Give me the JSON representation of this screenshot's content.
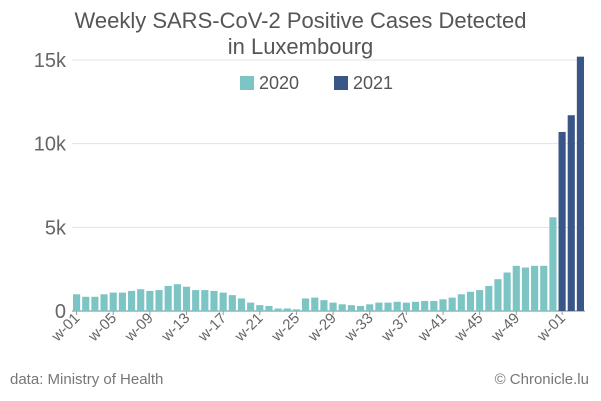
{
  "title_line1": "Weekly SARS-CoV-2 Positive Cases Detected",
  "title_line2": "in Luxembourg",
  "source": "data: Ministry of Health",
  "credit": "© Chronicle.lu",
  "colors": {
    "2020": "#7dc4c4",
    "2021": "#3a5688",
    "grid": "#e3e3e3",
    "axis": "#999999"
  },
  "chart_data": {
    "type": "bar",
    "title": "Weekly SARS-CoV-2 Positive Cases Detected in Luxembourg",
    "xlabel": "",
    "ylabel": "",
    "ylim": [
      0,
      15000
    ],
    "yticks": [
      0,
      5000,
      10000,
      15000
    ],
    "ytick_labels": [
      "0",
      "5k",
      "10k",
      "15k"
    ],
    "legend": {
      "position": "top-center",
      "entries": [
        "2020",
        "2021"
      ]
    },
    "grid": true,
    "categories": [
      "w-01",
      "w-02",
      "w-03",
      "w-04",
      "w-05",
      "w-06",
      "w-07",
      "w-08",
      "w-09",
      "w-10",
      "w-11",
      "w-12",
      "w-13",
      "w-14",
      "w-15",
      "w-16",
      "w-17",
      "w-18",
      "w-19",
      "w-20",
      "w-21",
      "w-22",
      "w-23",
      "w-24",
      "w-25",
      "w-26",
      "w-27",
      "w-28",
      "w-29",
      "w-30",
      "w-31",
      "w-32",
      "w-33",
      "w-34",
      "w-35",
      "w-36",
      "w-37",
      "w-38",
      "w-39",
      "w-40",
      "w-41",
      "w-42",
      "w-43",
      "w-44",
      "w-45",
      "w-46",
      "w-47",
      "w-48",
      "w-49",
      "w-50",
      "w-51",
      "w-52",
      "w-53",
      "w-01",
      "w-02",
      "w-03"
    ],
    "tick_labels": [
      "w-01",
      "w-05",
      "w-09",
      "w-13",
      "w-17",
      "w-21",
      "w-25",
      "w-29",
      "w-33",
      "w-37",
      "w-41",
      "w-45",
      "w-49",
      "w-01"
    ],
    "tick_indices": [
      0,
      4,
      8,
      12,
      16,
      20,
      24,
      28,
      32,
      36,
      40,
      44,
      48,
      53
    ],
    "years": [
      "2020",
      "2020",
      "2020",
      "2020",
      "2020",
      "2020",
      "2020",
      "2020",
      "2020",
      "2020",
      "2020",
      "2020",
      "2020",
      "2020",
      "2020",
      "2020",
      "2020",
      "2020",
      "2020",
      "2020",
      "2020",
      "2020",
      "2020",
      "2020",
      "2020",
      "2020",
      "2020",
      "2020",
      "2020",
      "2020",
      "2020",
      "2020",
      "2020",
      "2020",
      "2020",
      "2020",
      "2020",
      "2020",
      "2020",
      "2020",
      "2020",
      "2020",
      "2020",
      "2020",
      "2020",
      "2020",
      "2020",
      "2020",
      "2020",
      "2020",
      "2020",
      "2020",
      "2020",
      "2021",
      "2021",
      "2021"
    ],
    "values": [
      1000,
      850,
      850,
      1000,
      1100,
      1100,
      1200,
      1300,
      1200,
      1250,
      1500,
      1600,
      1450,
      1250,
      1250,
      1200,
      1100,
      950,
      750,
      500,
      350,
      300,
      150,
      150,
      100,
      750,
      800,
      650,
      500,
      400,
      350,
      300,
      400,
      500,
      500,
      550,
      500,
      550,
      600,
      600,
      700,
      800,
      1000,
      1150,
      1250,
      1500,
      1900,
      2300,
      2700,
      2600,
      2700,
      2700,
      5600,
      10700,
      11700,
      15200
    ]
  }
}
